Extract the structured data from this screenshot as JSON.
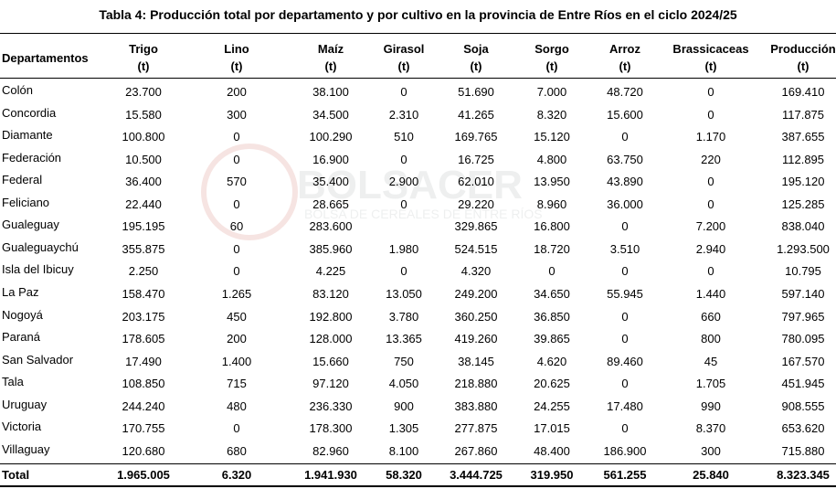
{
  "title": "Tabla 4: Producción total por departamento y por cultivo en la provincia de Entre Ríos en el ciclo 2024/25",
  "watermark": {
    "name": "BOLSACER",
    "subtitle": "BOLSA DE CEREALES DE ENTRE RÍOS"
  },
  "table": {
    "headers": [
      {
        "name": "Departamentos"
      },
      {
        "name": "Trigo",
        "unit": "(t)"
      },
      {
        "name": "Lino",
        "unit": "(t)"
      },
      {
        "name": "Maíz",
        "unit": "(t)"
      },
      {
        "name": "Girasol",
        "unit": "(t)"
      },
      {
        "name": "Soja",
        "unit": "(t)"
      },
      {
        "name": "Sorgo",
        "unit": "(t)"
      },
      {
        "name": "Arroz",
        "unit": "(t)"
      },
      {
        "name": "Brassicaceas",
        "unit": "(t)"
      },
      {
        "name": "Producción",
        "unit": "(t)"
      }
    ],
    "rows": [
      [
        "Colón",
        "23.700",
        "200",
        "38.100",
        "0",
        "51.690",
        "7.000",
        "48.720",
        "0",
        "169.410"
      ],
      [
        "Concordia",
        "15.580",
        "300",
        "34.500",
        "2.310",
        "41.265",
        "8.320",
        "15.600",
        "0",
        "117.875"
      ],
      [
        "Diamante",
        "100.800",
        "0",
        "100.290",
        "510",
        "169.765",
        "15.120",
        "0",
        "1.170",
        "387.655"
      ],
      [
        "Federación",
        "10.500",
        "0",
        "16.900",
        "0",
        "16.725",
        "4.800",
        "63.750",
        "220",
        "112.895"
      ],
      [
        "Federal",
        "36.400",
        "570",
        "35.400",
        "2.900",
        "62.010",
        "13.950",
        "43.890",
        "0",
        "195.120"
      ],
      [
        "Feliciano",
        "22.440",
        "0",
        "28.665",
        "0",
        "29.220",
        "8.960",
        "36.000",
        "0",
        "125.285"
      ],
      [
        "Gualeguay",
        "195.195",
        "60",
        "283.600",
        "",
        "329.865",
        "16.800",
        "0",
        "7.200",
        "838.040"
      ],
      [
        "Gualeguaychú",
        "355.875",
        "0",
        "385.960",
        "1.980",
        "524.515",
        "18.720",
        "3.510",
        "2.940",
        "1.293.500"
      ],
      [
        "Isla del Ibicuy",
        "2.250",
        "0",
        "4.225",
        "0",
        "4.320",
        "0",
        "0",
        "0",
        "10.795"
      ],
      [
        "La Paz",
        "158.470",
        "1.265",
        "83.120",
        "13.050",
        "249.200",
        "34.650",
        "55.945",
        "1.440",
        "597.140"
      ],
      [
        "Nogoyá",
        "203.175",
        "450",
        "192.800",
        "3.780",
        "360.250",
        "36.850",
        "0",
        "660",
        "797.965"
      ],
      [
        "Paraná",
        "178.605",
        "200",
        "128.000",
        "13.365",
        "419.260",
        "39.865",
        "0",
        "800",
        "780.095"
      ],
      [
        "San Salvador",
        "17.490",
        "1.400",
        "15.660",
        "750",
        "38.145",
        "4.620",
        "89.460",
        "45",
        "167.570"
      ],
      [
        "Tala",
        "108.850",
        "715",
        "97.120",
        "4.050",
        "218.880",
        "20.625",
        "0",
        "1.705",
        "451.945"
      ],
      [
        "Uruguay",
        "244.240",
        "480",
        "236.330",
        "900",
        "383.880",
        "24.255",
        "17.480",
        "990",
        "908.555"
      ],
      [
        "Victoria",
        "170.755",
        "0",
        "178.300",
        "1.305",
        "277.875",
        "17.015",
        "0",
        "8.370",
        "653.620"
      ],
      [
        "Villaguay",
        "120.680",
        "680",
        "82.960",
        "8.100",
        "267.860",
        "48.400",
        "186.900",
        "300",
        "715.880"
      ]
    ],
    "total": [
      "Total",
      "1.965.005",
      "6.320",
      "1.941.930",
      "58.320",
      "3.444.725",
      "319.950",
      "561.255",
      "25.840",
      "8.323.345"
    ]
  }
}
